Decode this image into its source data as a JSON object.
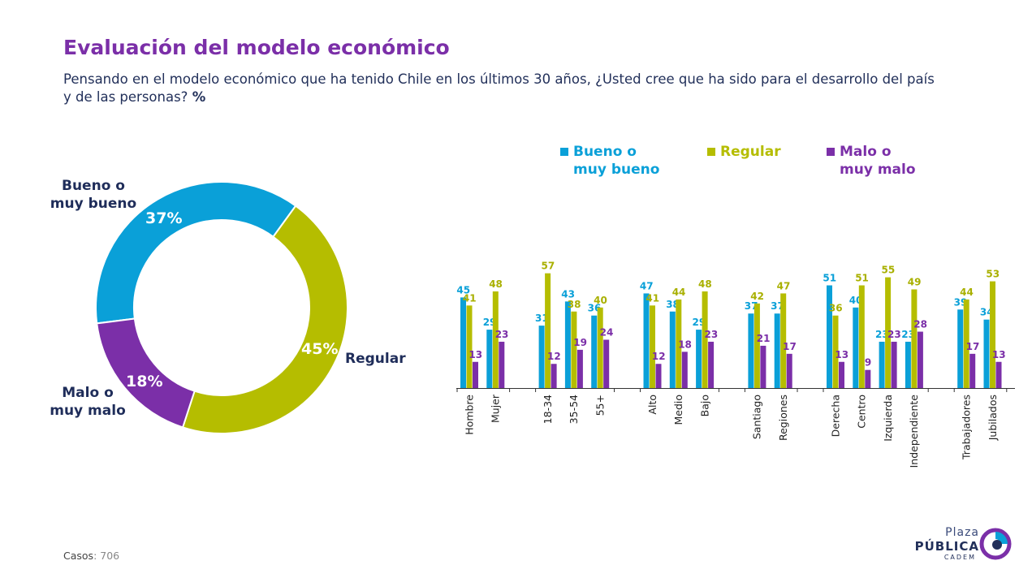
{
  "header": {
    "title": "Evaluación del modelo económico",
    "question": "Pensando en el modelo económico que ha tenido Chile en los últimos 30 años, ¿Usted cree que ha sido para el desarrollo del país y de las personas?",
    "unit": "%"
  },
  "colors": {
    "bueno": "#0aa0d8",
    "regular": "#b5bd00",
    "malo": "#7b2fa8"
  },
  "donut": {
    "bueno": {
      "label": "Bueno o muy bueno",
      "line1": "Bueno o",
      "line2": "muy bueno",
      "value_label": "37%"
    },
    "regular": {
      "label": "Regular",
      "value_label": "45%"
    },
    "malo": {
      "label": "Malo o muy malo",
      "line1": "Malo o",
      "line2": "muy malo",
      "value_label": "18%"
    }
  },
  "legend": {
    "bueno": {
      "line1": "Bueno o",
      "line2": "muy bueno"
    },
    "regular": {
      "line1": "Regular",
      "line2": ""
    },
    "malo": {
      "line1": "Malo o",
      "line2": "muy malo"
    }
  },
  "chart_data": [
    {
      "type": "pie",
      "categories": [
        "Bueno o muy bueno",
        "Regular",
        "Malo o muy malo"
      ],
      "values": [
        37,
        45,
        18
      ]
    },
    {
      "type": "bar",
      "groups": [
        [
          "Hombre",
          "Mujer"
        ],
        [
          "18-34",
          "35-54",
          "55+"
        ],
        [
          "Alto",
          "Medio",
          "Bajo"
        ],
        [
          "Santiago",
          "Regiones"
        ],
        [
          "Derecha",
          "Centro",
          "Izquierda",
          "Independiente"
        ],
        [
          "Trabajadores",
          "Jubilados"
        ]
      ],
      "categories": [
        "Hombre",
        "Mujer",
        "18-34",
        "35-54",
        "55+",
        "Alto",
        "Medio",
        "Bajo",
        "Santiago",
        "Regiones",
        "Derecha",
        "Centro",
        "Izquierda",
        "Independiente",
        "Trabajadores",
        "Jubilados"
      ],
      "series": [
        {
          "name": "Bueno o muy bueno",
          "values": [
            45,
            29,
            31,
            43,
            36,
            47,
            38,
            29,
            37,
            37,
            51,
            40,
            23,
            23,
            39,
            34
          ]
        },
        {
          "name": "Regular",
          "values": [
            41,
            48,
            57,
            38,
            40,
            41,
            44,
            48,
            42,
            47,
            36,
            51,
            55,
            49,
            44,
            53
          ]
        },
        {
          "name": "Malo o muy malo",
          "values": [
            13,
            23,
            12,
            19,
            24,
            12,
            18,
            23,
            21,
            17,
            13,
            9,
            23,
            28,
            17,
            13
          ]
        }
      ],
      "ylim": [
        0,
        60
      ],
      "grid": false,
      "legend_position": "top"
    }
  ],
  "footer": {
    "casos_label": "Casos",
    "casos_value": ": 706",
    "logo": {
      "line1": "Plaza",
      "line2": "PÚBLICA",
      "line3": "CADEM"
    }
  }
}
